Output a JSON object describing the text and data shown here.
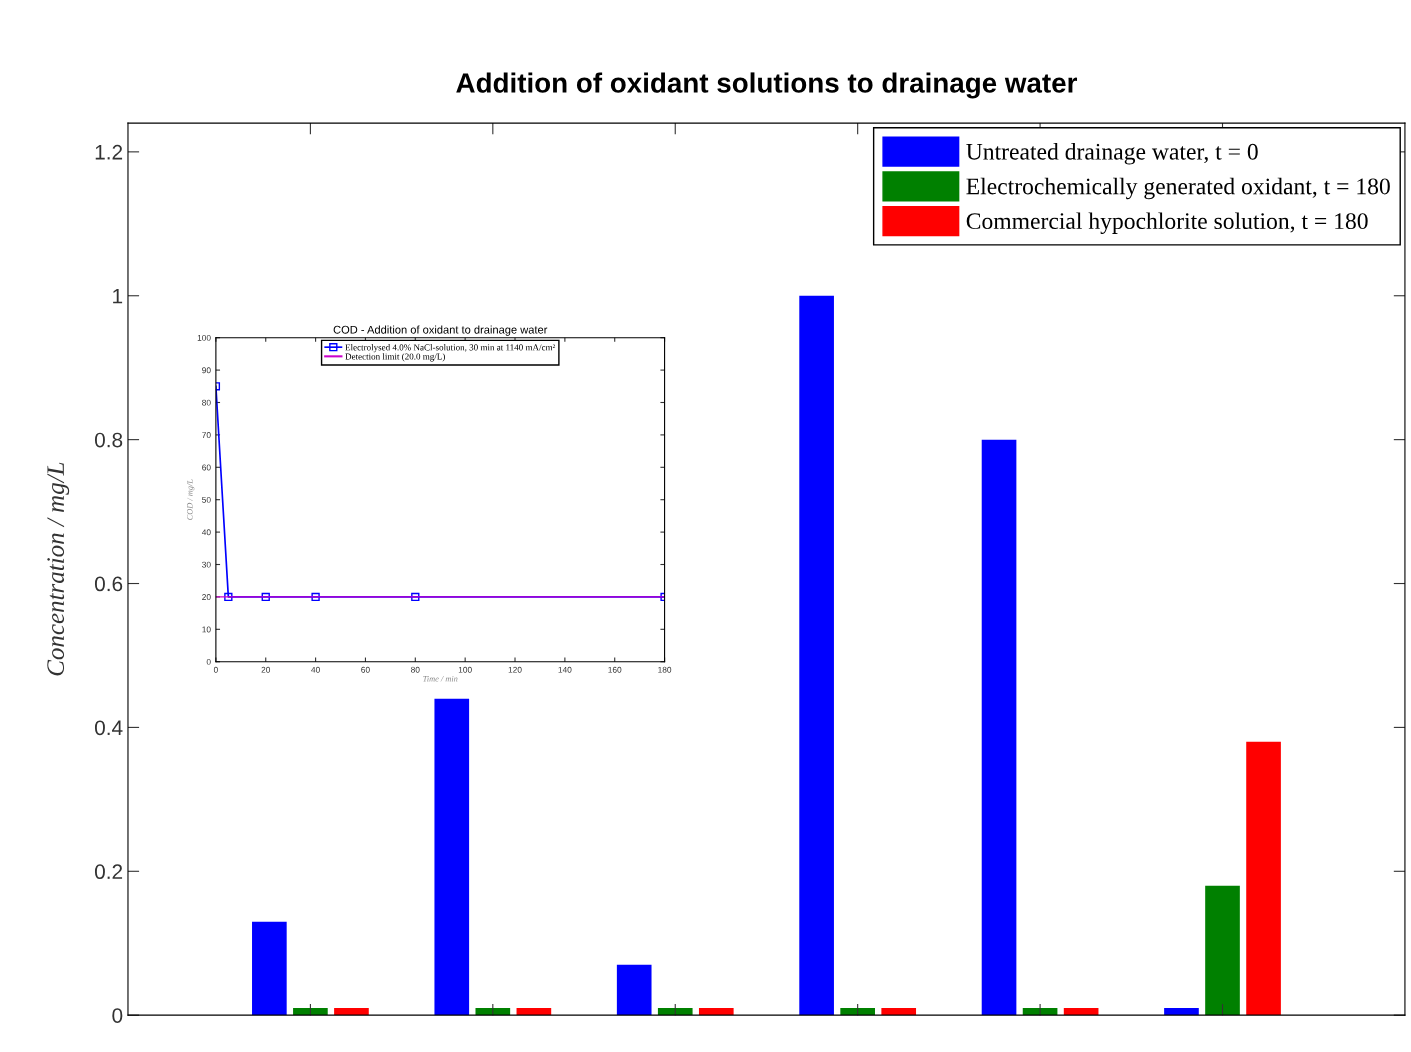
{
  "chart_data": [
    {
      "type": "bar",
      "title": "Addition of oxidant solutions to drainage water",
      "ylabel": "Concentration / mg/L",
      "categories": [
        null,
        null,
        null,
        null,
        null,
        null
      ],
      "series": [
        {
          "name": "Untreated drainage water, t = 0",
          "color": "#0000ff",
          "values": [
            0.13,
            0.44,
            0.07,
            1.0,
            0.8,
            0.01
          ]
        },
        {
          "name": "Electrochemically generated oxidant, t = 180",
          "color": "#008000",
          "values": [
            0.01,
            0.01,
            0.01,
            0.01,
            0.01,
            0.18
          ]
        },
        {
          "name": "Commercial hypochlorite solution, t = 180",
          "color": "#ff0000",
          "values": [
            0.01,
            0.01,
            0.01,
            0.01,
            0.01,
            0.38
          ]
        }
      ],
      "ylim": [
        0,
        1.24
      ],
      "yticks": [
        0,
        0.2,
        0.4,
        0.6,
        0.8,
        1,
        1.2
      ],
      "tick_labels": "y",
      "grid": false,
      "legend": "top right"
    },
    {
      "type": "line",
      "title": "COD - Addition of oxidant to drainage water",
      "xlabel": "Time / min",
      "ylabel": "COD / mg/L",
      "series": [
        {
          "name": "Electrolysed 4.0% NaCl-solution, 30 min at 1140 mA/cm²",
          "color": "#0000ff",
          "x": [
            0,
            5,
            20,
            40,
            80,
            180
          ],
          "values": [
            85,
            20,
            20,
            20,
            20,
            20
          ]
        }
      ],
      "ref_lines": [
        {
          "axis": "y",
          "value": 20,
          "label": "Detection limit (20.0 mg/L)",
          "color": "#cc00cc"
        }
      ],
      "xlim": [
        0,
        180
      ],
      "xticks": [
        0,
        20,
        40,
        60,
        80,
        100,
        120,
        140,
        160,
        180
      ],
      "ylim": [
        0,
        100
      ],
      "yticks": [
        0,
        10,
        20,
        30,
        40,
        50,
        60,
        70,
        80,
        90,
        100
      ],
      "marker": "square",
      "line_style": "solid",
      "grid": false,
      "legend": "top"
    }
  ]
}
